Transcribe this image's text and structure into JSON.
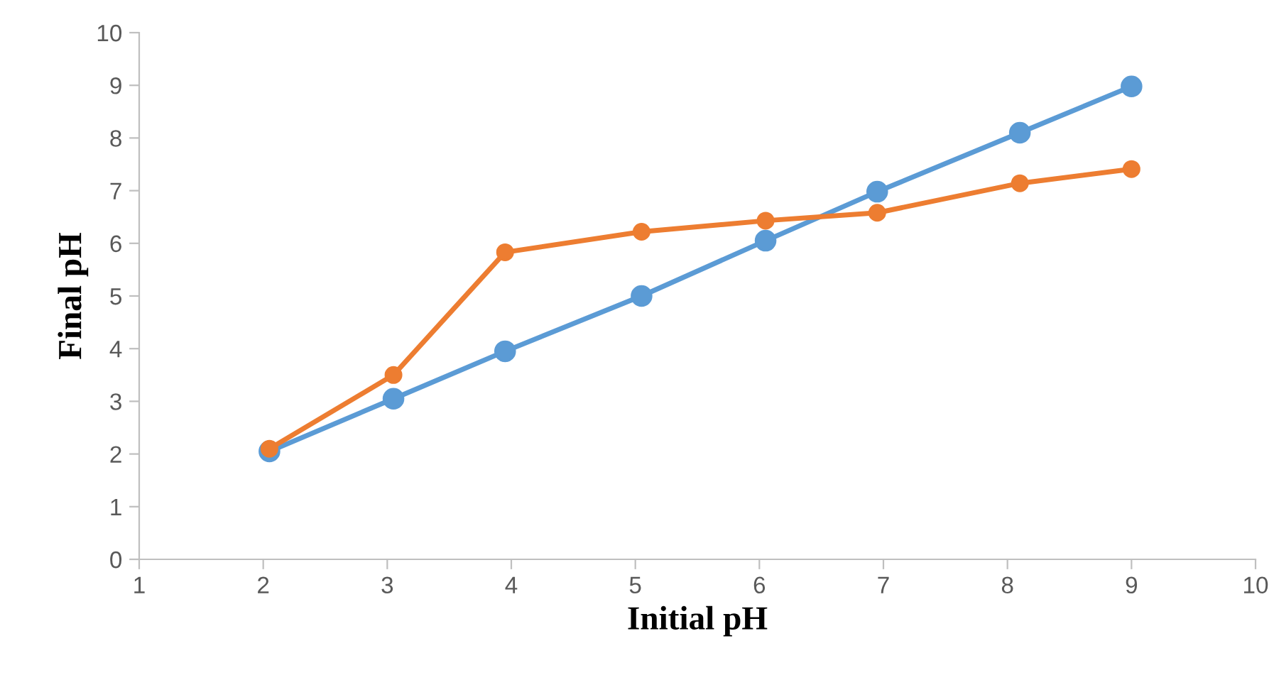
{
  "chart_data": {
    "type": "line",
    "xlabel": "Initial pH",
    "ylabel": "Final pH",
    "x": [
      2.05,
      3.05,
      3.95,
      5.05,
      6.05,
      6.95,
      8.1,
      9.0
    ],
    "series": [
      {
        "color": "#5b9bd5",
        "values": [
          2.05,
          3.05,
          3.95,
          5.0,
          6.05,
          6.98,
          8.1,
          8.98
        ]
      },
      {
        "color": "#ed7d31",
        "values": [
          2.1,
          3.5,
          5.83,
          6.22,
          6.43,
          6.58,
          7.14,
          7.41
        ]
      }
    ],
    "xlim": [
      1,
      10
    ],
    "ylim": [
      0,
      10
    ],
    "xticks": [
      1,
      2,
      3,
      4,
      5,
      6,
      7,
      8,
      9,
      10
    ],
    "yticks": [
      0,
      1,
      2,
      3,
      4,
      5,
      6,
      7,
      8,
      9,
      10
    ],
    "grid": false,
    "legend": false,
    "marker": "circle",
    "line_style": "solid"
  }
}
